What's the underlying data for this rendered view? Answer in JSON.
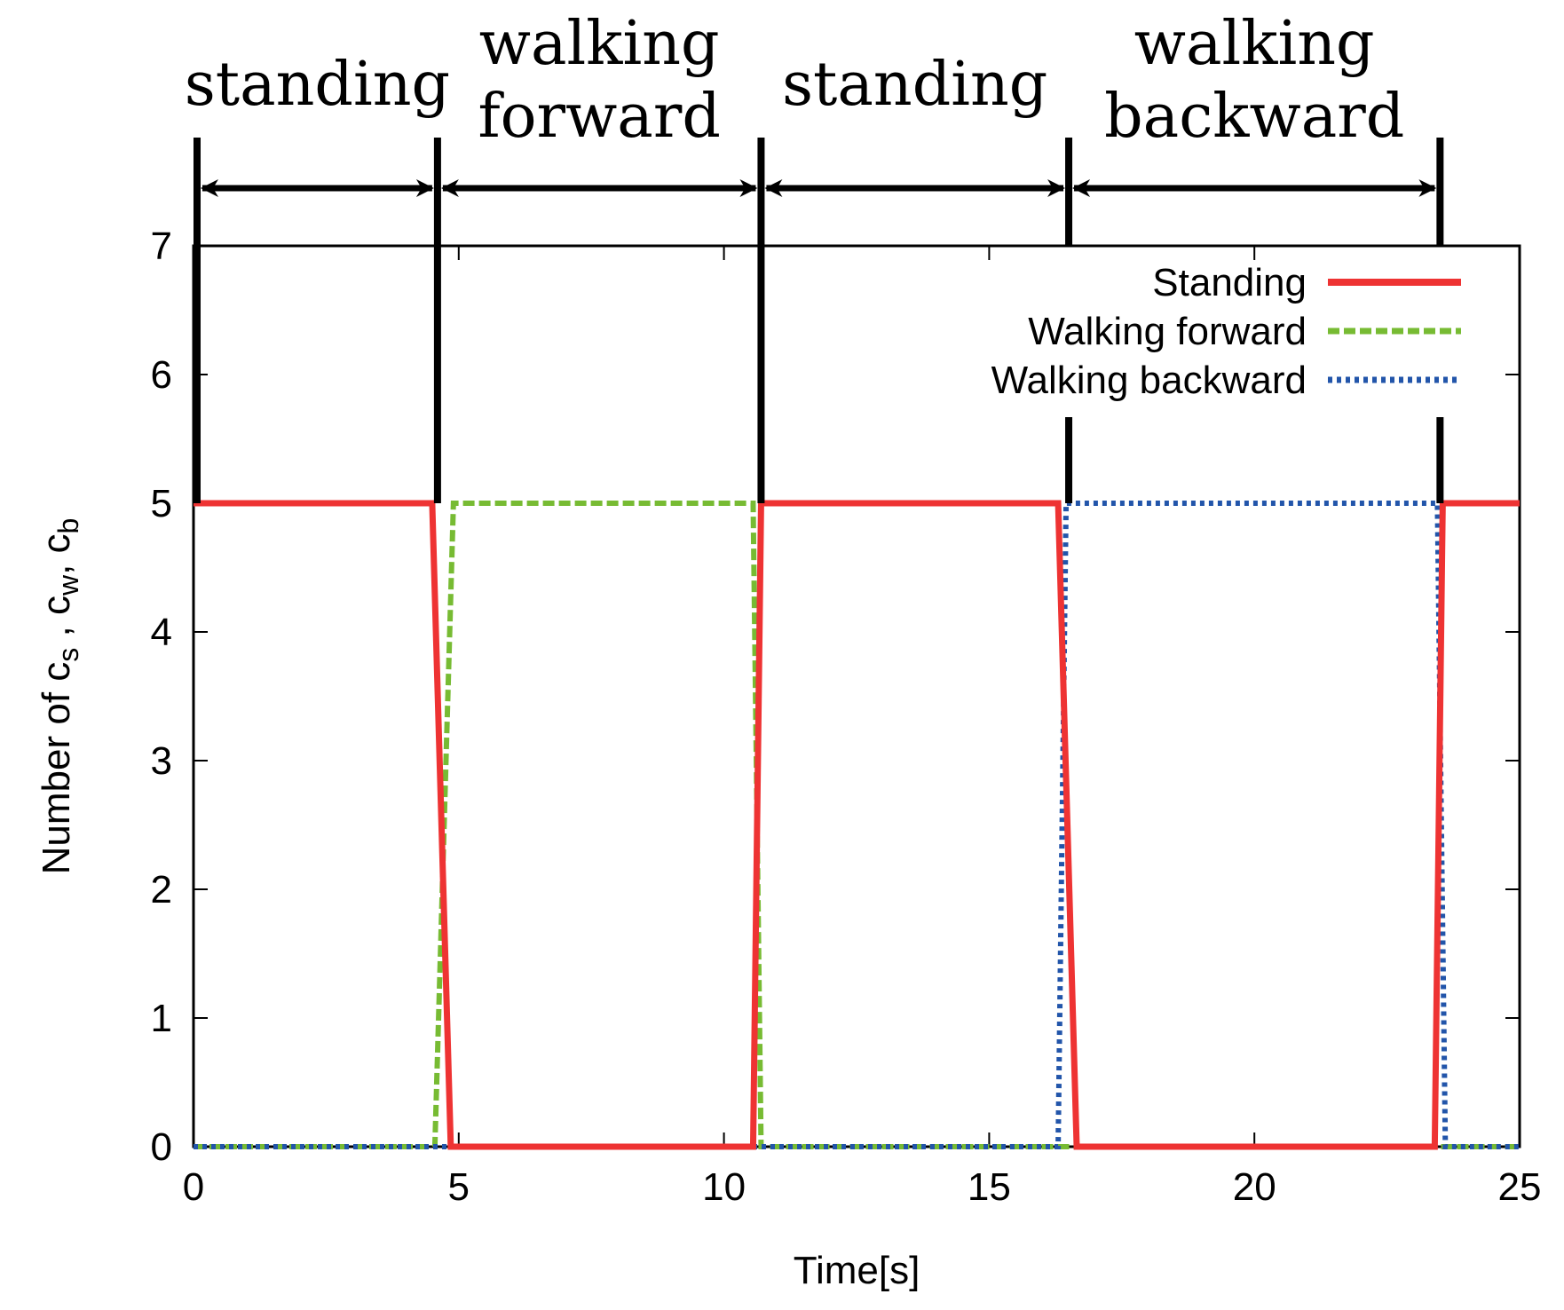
{
  "chart_data": {
    "type": "line",
    "title": "",
    "xlabel": "Time[s]",
    "ylabel_parts": [
      "Number of c",
      "s",
      " , c",
      "w",
      ", c",
      "b"
    ],
    "xlim": [
      0,
      25
    ],
    "ylim": [
      0,
      7
    ],
    "xticks": [
      0,
      5,
      10,
      15,
      20,
      25
    ],
    "yticks": [
      0,
      1,
      2,
      3,
      4,
      5,
      6,
      7
    ],
    "legend_position": "top-right",
    "series": [
      {
        "name": "Standing",
        "color": "#ee3333",
        "style": "solid",
        "x": [
          0,
          4.5,
          4.85,
          10.55,
          10.7,
          16.3,
          16.65,
          23.4,
          23.55,
          25
        ],
        "y": [
          5,
          5,
          0,
          0,
          5,
          5,
          0,
          0,
          5,
          5
        ]
      },
      {
        "name": "Walking forward",
        "color": "#77bb33",
        "style": "dashed",
        "x": [
          0,
          4.55,
          4.9,
          10.55,
          10.7,
          25
        ],
        "y": [
          0,
          0,
          5,
          5,
          0,
          0
        ]
      },
      {
        "name": "Walking backward",
        "color": "#2255aa",
        "style": "dotted",
        "x": [
          0,
          16.3,
          16.45,
          23.45,
          23.6,
          25
        ],
        "y": [
          0,
          0,
          5,
          5,
          0,
          0
        ]
      }
    ],
    "phase_boundaries": [
      0,
      4.6,
      10.7,
      16.5,
      23.5
    ],
    "phases": [
      {
        "label_lines": [
          "standing"
        ],
        "start": 0,
        "end": 4.6
      },
      {
        "label_lines": [
          "walking",
          "forward"
        ],
        "start": 4.6,
        "end": 10.7
      },
      {
        "label_lines": [
          "standing"
        ],
        "start": 10.7,
        "end": 16.5
      },
      {
        "label_lines": [
          "walking",
          "backward"
        ],
        "start": 16.5,
        "end": 23.5
      }
    ]
  }
}
